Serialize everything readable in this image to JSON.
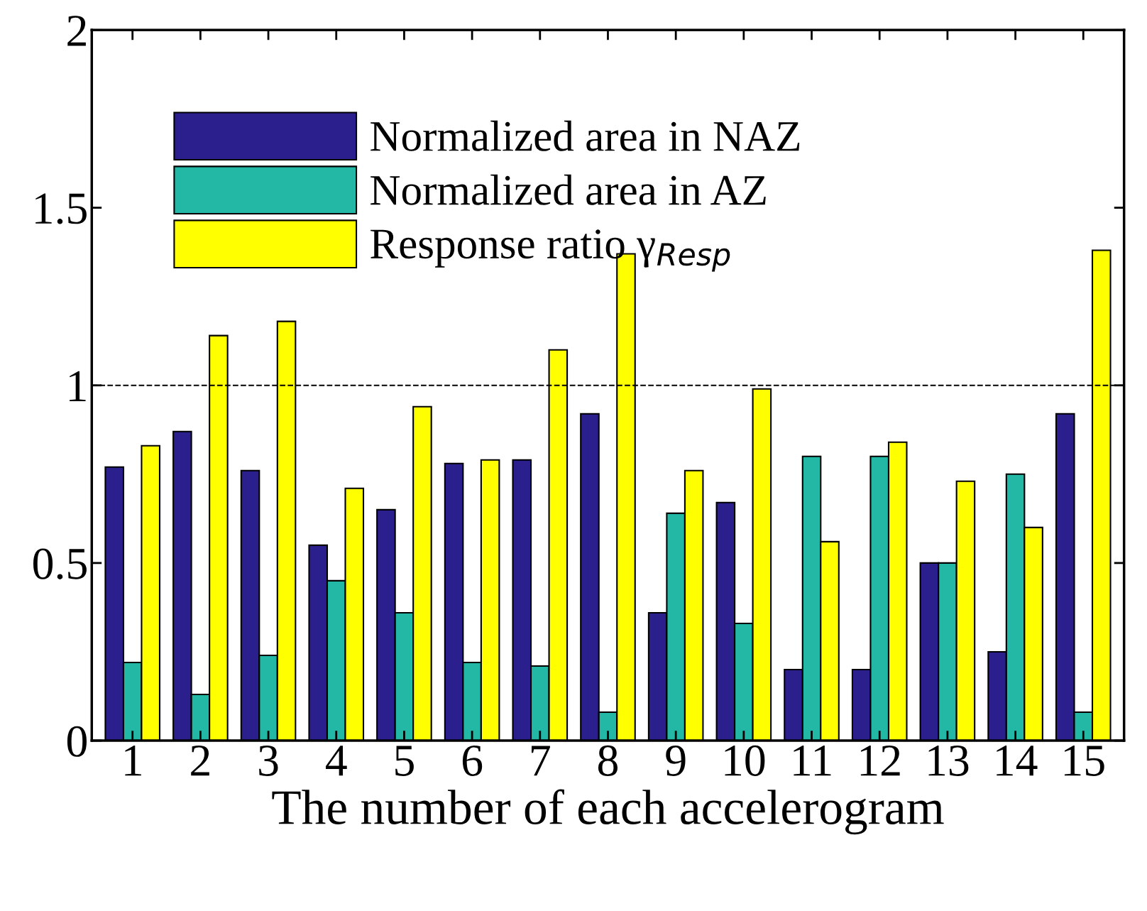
{
  "chart_data": {
    "type": "bar",
    "xlabel": "The number of each accelerogram",
    "categories": [
      "1",
      "2",
      "3",
      "4",
      "5",
      "6",
      "7",
      "8",
      "9",
      "10",
      "11",
      "12",
      "13",
      "14",
      "15"
    ],
    "series": [
      {
        "name": "Normalized area in NAZ",
        "color": "#2b1f8e",
        "values": [
          0.77,
          0.87,
          0.76,
          0.55,
          0.65,
          0.78,
          0.79,
          0.92,
          0.36,
          0.67,
          0.2,
          0.2,
          0.5,
          0.25,
          0.92
        ]
      },
      {
        "name": "Normalized area in AZ",
        "color": "#22b8a5",
        "values": [
          0.22,
          0.13,
          0.24,
          0.45,
          0.36,
          0.22,
          0.21,
          0.08,
          0.64,
          0.33,
          0.8,
          0.8,
          0.5,
          0.75,
          0.08
        ]
      },
      {
        "name": "Response ratio γ$_{Resp}$",
        "color": "#ffff00",
        "values": [
          0.83,
          1.14,
          1.18,
          0.71,
          0.94,
          0.79,
          1.1,
          1.37,
          0.76,
          0.99,
          0.56,
          0.84,
          0.73,
          0.6,
          1.38
        ]
      }
    ],
    "ylim": [
      0,
      2
    ],
    "yticks": [
      0,
      0.5,
      1,
      1.5,
      2
    ],
    "grid": false,
    "legend": "top left",
    "ref_lines": [
      {
        "axis": "y",
        "value": 1,
        "color": "#000000",
        "line_style": "dashed"
      }
    ]
  }
}
